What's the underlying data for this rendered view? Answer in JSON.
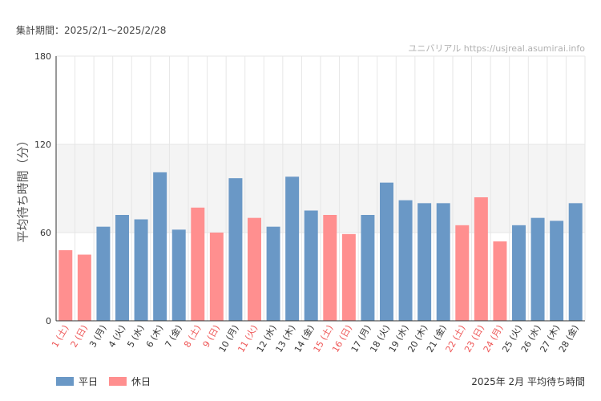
{
  "header": {
    "period_label": "集計期間：2025/2/1〜2025/2/28",
    "source_label": "ユニバリアル  https://usjreal.asumirai.info"
  },
  "legend": {
    "weekday_label": "平日",
    "holiday_label": "休日"
  },
  "footer_title": "2025年 2月 平均待ち時間",
  "colors": {
    "weekday": "#6a98c6",
    "holiday": "#ff8f8f",
    "holiday_text": "#ee5555",
    "band": "#f4f4f4",
    "grid": "#e6e6e6",
    "axis": "#333333"
  },
  "chart_data": {
    "type": "bar",
    "title": "2025年 2月 平均待ち時間",
    "ylabel": "平均待ち時間（分）",
    "xlabel": "",
    "ylim": [
      0,
      180
    ],
    "yticks": [
      0,
      60,
      120,
      180
    ],
    "band": [
      60,
      120
    ],
    "categories": [
      "1 (土)",
      "2 (日)",
      "3 (月)",
      "4 (火)",
      "5 (水)",
      "6 (木)",
      "7 (金)",
      "8 (土)",
      "9 (日)",
      "10 (月)",
      "11 (火)",
      "12 (水)",
      "13 (木)",
      "14 (金)",
      "15 (土)",
      "16 (日)",
      "17 (月)",
      "18 (火)",
      "19 (水)",
      "20 (木)",
      "21 (金)",
      "22 (土)",
      "23 (日)",
      "24 (月)",
      "25 (火)",
      "26 (水)",
      "27 (木)",
      "28 (金)"
    ],
    "values": [
      48,
      45,
      64,
      72,
      69,
      101,
      62,
      77,
      60,
      97,
      70,
      64,
      98,
      75,
      72,
      59,
      72,
      94,
      82,
      80,
      80,
      65,
      84,
      54,
      65,
      70,
      68,
      80
    ],
    "day_types": [
      "holiday",
      "holiday",
      "weekday",
      "weekday",
      "weekday",
      "weekday",
      "weekday",
      "holiday",
      "holiday",
      "weekday",
      "holiday",
      "weekday",
      "weekday",
      "weekday",
      "holiday",
      "holiday",
      "weekday",
      "weekday",
      "weekday",
      "weekday",
      "weekday",
      "holiday",
      "holiday",
      "holiday",
      "weekday",
      "weekday",
      "weekday",
      "weekday"
    ]
  }
}
